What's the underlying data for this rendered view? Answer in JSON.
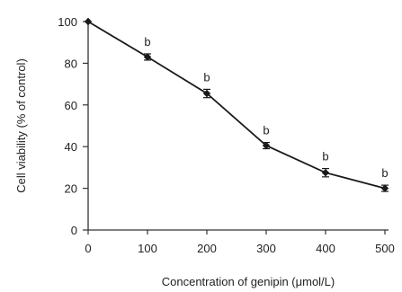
{
  "chart_data": {
    "type": "line",
    "title": "",
    "xlabel": "Concentration of genipin (μmol/L)",
    "ylabel": "Cell viability (% of control)",
    "xlim": [
      0,
      500
    ],
    "ylim": [
      0,
      100
    ],
    "x_ticks": [
      "0",
      "100",
      "200",
      "300",
      "400",
      "500"
    ],
    "y_ticks": [
      "0",
      "20",
      "40",
      "60",
      "80",
      "100"
    ],
    "grid": false,
    "legend": "none",
    "series": [
      {
        "x": [
          0,
          100,
          200,
          300,
          400,
          500
        ],
        "values": [
          100,
          83,
          65.5,
          40.5,
          27.5,
          20
        ],
        "error": [
          0,
          1.5,
          2,
          1.5,
          2,
          1.5
        ],
        "annotations": [
          "",
          "b",
          "b",
          "b",
          "b",
          "b"
        ]
      }
    ],
    "colors": {
      "line": "#1a1a1a",
      "axis": "#333333"
    }
  }
}
